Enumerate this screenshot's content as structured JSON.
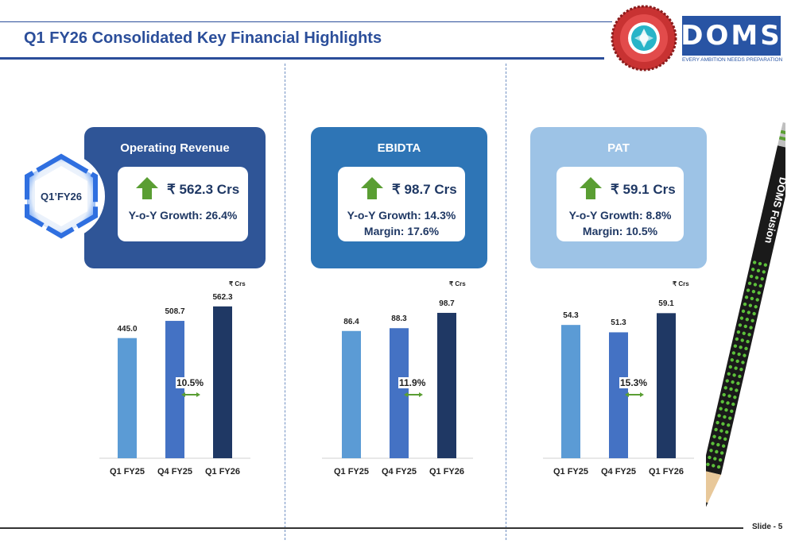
{
  "header": {
    "title": "Q1 FY26 Consolidated Key Financial Highlights",
    "logo_text": "DOMS",
    "tagline": "EVERY AMBITION NEEDS PREPARATION"
  },
  "period_badge": "Q1’FY26",
  "cards": [
    {
      "title": "Operating Revenue",
      "amount": "₹ 562.3 Crs",
      "line1": "Y-o-Y Growth: 26.4%",
      "line2": "",
      "color": "#2f5597",
      "arrow_icon": "up-arrow-icon"
    },
    {
      "title": "EBIDTA",
      "amount": "₹ 98.7 Crs",
      "line1": "Y-o-Y Growth: 14.3%",
      "line2": "Margin: 17.6%",
      "color": "#2e75b6",
      "arrow_icon": "up-arrow-icon"
    },
    {
      "title": "PAT",
      "amount": "₹ 59.1 Crs",
      "line1": "Y-o-Y Growth: 8.8%",
      "line2": "Margin: 10.5%",
      "color": "#9dc3e6",
      "arrow_icon": "up-arrow-icon"
    }
  ],
  "chart_data": [
    {
      "type": "bar",
      "unit": "₹ Crs",
      "categories": [
        "Q1 FY25",
        "Q4 FY25",
        "Q1 FY26"
      ],
      "values": [
        445.0,
        508.7,
        562.3
      ],
      "value_labels": [
        "445.0",
        "508.7",
        "562.3"
      ],
      "ylim": [
        0,
        600
      ],
      "growth_label": "10.5%",
      "bar_colors": [
        "#5b9bd5",
        "#4472c4",
        "#1f3864"
      ],
      "grid": false
    },
    {
      "type": "bar",
      "unit": "₹ Crs",
      "categories": [
        "Q1 FY25",
        "Q4 FY25",
        "Q1 FY26"
      ],
      "values": [
        86.4,
        88.3,
        98.7
      ],
      "value_labels": [
        "86.4",
        "88.3",
        "98.7"
      ],
      "ylim": [
        0,
        110
      ],
      "growth_label": "11.9%",
      "bar_colors": [
        "#5b9bd5",
        "#4472c4",
        "#1f3864"
      ],
      "grid": false
    },
    {
      "type": "bar",
      "unit": "₹ Crs",
      "categories": [
        "Q1 FY25",
        "Q4 FY25",
        "Q1 FY26"
      ],
      "values": [
        54.3,
        51.3,
        59.1
      ],
      "value_labels": [
        "54.3",
        "51.3",
        "59.1"
      ],
      "ylim": [
        0,
        66
      ],
      "growth_label": "15.3%",
      "bar_colors": [
        "#5b9bd5",
        "#4472c4",
        "#1f3864"
      ],
      "grid": false
    }
  ],
  "footer": {
    "slide_number": "Slide - 5"
  },
  "pencil_text": "DOMS Fusion"
}
